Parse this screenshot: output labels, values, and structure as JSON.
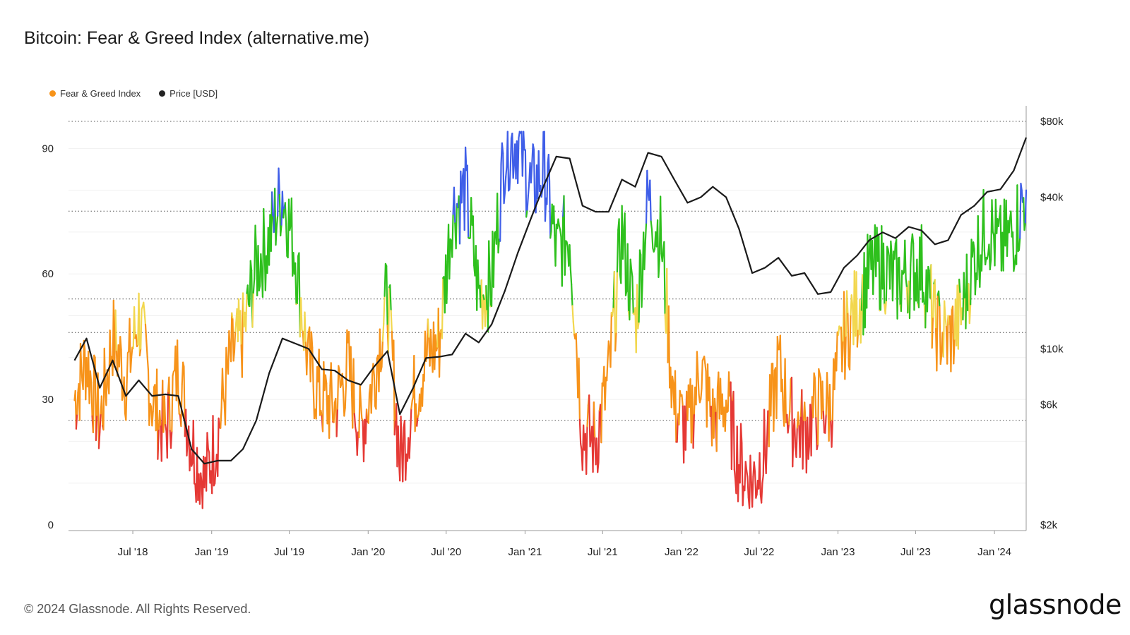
{
  "title": "Bitcoin: Fear & Greed Index (alternative.me)",
  "footer": {
    "copyright": "© 2024 Glassnode. All Rights Reserved.",
    "logo": "glassnode"
  },
  "legend": [
    {
      "label": "Fear & Greed Index",
      "color": "#f7931a"
    },
    {
      "label": "Price [USD]",
      "color": "#222222"
    }
  ],
  "colors": {
    "extreme_fear": "#e53935",
    "fear": "#f7931a",
    "neutral": "#f2d74e",
    "greed": "#2ec01d",
    "extreme_greed": "#3f5ee8",
    "price": "#1a1a1a"
  },
  "chart_data": {
    "type": "line",
    "x_range": [
      "2018-02-01",
      "2024-03-15"
    ],
    "x_ticks": [
      "Jul '18",
      "Jan '19",
      "Jul '19",
      "Jan '20",
      "Jul '20",
      "Jan '21",
      "Jul '21",
      "Jan '22",
      "Jul '22",
      "Jan '23",
      "Jul '23",
      "Jan '24"
    ],
    "y_left": {
      "ticks": [
        "0",
        "30",
        "60",
        "90"
      ],
      "ylim": [
        0,
        100
      ]
    },
    "y_right": {
      "ticks": [
        "$2k",
        "$6k",
        "$10k",
        "$40k",
        "$80k"
      ],
      "scale": "log",
      "ylim": [
        2000,
        80000
      ]
    },
    "zone_thresholds": [
      25,
      46,
      54,
      75
    ],
    "series": [
      {
        "name": "Fear & Greed Index",
        "x": [
          "2018-02",
          "2018-03",
          "2018-04",
          "2018-05",
          "2018-06",
          "2018-07",
          "2018-08",
          "2018-09",
          "2018-10",
          "2018-11",
          "2018-12",
          "2019-01",
          "2019-02",
          "2019-03",
          "2019-04",
          "2019-05",
          "2019-06",
          "2019-07",
          "2019-08",
          "2019-09",
          "2019-10",
          "2019-11",
          "2019-12",
          "2020-01",
          "2020-02",
          "2020-03",
          "2020-04",
          "2020-05",
          "2020-06",
          "2020-07",
          "2020-08",
          "2020-09",
          "2020-10",
          "2020-11",
          "2020-12",
          "2021-01",
          "2021-02",
          "2021-03",
          "2021-04",
          "2021-05",
          "2021-06",
          "2021-07",
          "2021-08",
          "2021-09",
          "2021-10",
          "2021-11",
          "2021-12",
          "2022-01",
          "2022-02",
          "2022-03",
          "2022-04",
          "2022-05",
          "2022-06",
          "2022-07",
          "2022-08",
          "2022-09",
          "2022-10",
          "2022-11",
          "2022-12",
          "2023-01",
          "2023-02",
          "2023-03",
          "2023-04",
          "2023-05",
          "2023-06",
          "2023-07",
          "2023-08",
          "2023-09",
          "2023-10",
          "2023-11",
          "2023-12",
          "2024-01",
          "2024-02",
          "2024-03"
        ],
        "values": [
          30,
          40,
          24,
          45,
          35,
          50,
          30,
          22,
          38,
          20,
          10,
          22,
          40,
          45,
          62,
          68,
          80,
          65,
          38,
          30,
          28,
          38,
          22,
          36,
          55,
          15,
          30,
          40,
          44,
          75,
          80,
          55,
          58,
          90,
          92,
          80,
          85,
          65,
          70,
          22,
          20,
          35,
          70,
          48,
          78,
          68,
          28,
          22,
          38,
          25,
          30,
          15,
          10,
          18,
          38,
          25,
          22,
          28,
          28,
          45,
          52,
          60,
          62,
          58,
          60,
          62,
          48,
          44,
          50,
          64,
          72,
          66,
          70,
          80
        ],
        "color": "#f7931a"
      },
      {
        "name": "Price [USD]",
        "x": [
          "2018-02",
          "2018-03",
          "2018-04",
          "2018-05",
          "2018-06",
          "2018-07",
          "2018-08",
          "2018-09",
          "2018-10",
          "2018-11",
          "2018-12",
          "2019-01",
          "2019-02",
          "2019-03",
          "2019-04",
          "2019-05",
          "2019-06",
          "2019-07",
          "2019-08",
          "2019-09",
          "2019-10",
          "2019-11",
          "2019-12",
          "2020-01",
          "2020-02",
          "2020-03",
          "2020-04",
          "2020-05",
          "2020-06",
          "2020-07",
          "2020-08",
          "2020-09",
          "2020-10",
          "2020-11",
          "2020-12",
          "2021-01",
          "2021-02",
          "2021-03",
          "2021-04",
          "2021-05",
          "2021-06",
          "2021-07",
          "2021-08",
          "2021-09",
          "2021-10",
          "2021-11",
          "2021-12",
          "2022-01",
          "2022-02",
          "2022-03",
          "2022-04",
          "2022-05",
          "2022-06",
          "2022-07",
          "2022-08",
          "2022-09",
          "2022-10",
          "2022-11",
          "2022-12",
          "2023-01",
          "2023-02",
          "2023-03",
          "2023-04",
          "2023-05",
          "2023-06",
          "2023-07",
          "2023-08",
          "2023-09",
          "2023-10",
          "2023-11",
          "2023-12",
          "2024-01",
          "2024-02",
          "2024-03"
        ],
        "values": [
          9000,
          11000,
          7000,
          9000,
          6500,
          7500,
          6500,
          6600,
          6500,
          4000,
          3500,
          3600,
          3600,
          4000,
          5200,
          8000,
          11000,
          10500,
          10000,
          8300,
          8200,
          7500,
          7200,
          8500,
          9800,
          5500,
          7000,
          9200,
          9300,
          9500,
          11500,
          10600,
          12500,
          17000,
          24000,
          33000,
          45000,
          58000,
          57000,
          37000,
          35000,
          35000,
          47000,
          44000,
          60000,
          58000,
          47000,
          38000,
          40000,
          44000,
          40000,
          30000,
          20000,
          21000,
          23000,
          19500,
          20000,
          16500,
          16800,
          21000,
          23500,
          27000,
          29000,
          27500,
          30500,
          29500,
          26000,
          27000,
          34000,
          37000,
          42000,
          43000,
          51000,
          69000
        ],
        "color": "#1a1a1a"
      }
    ]
  }
}
